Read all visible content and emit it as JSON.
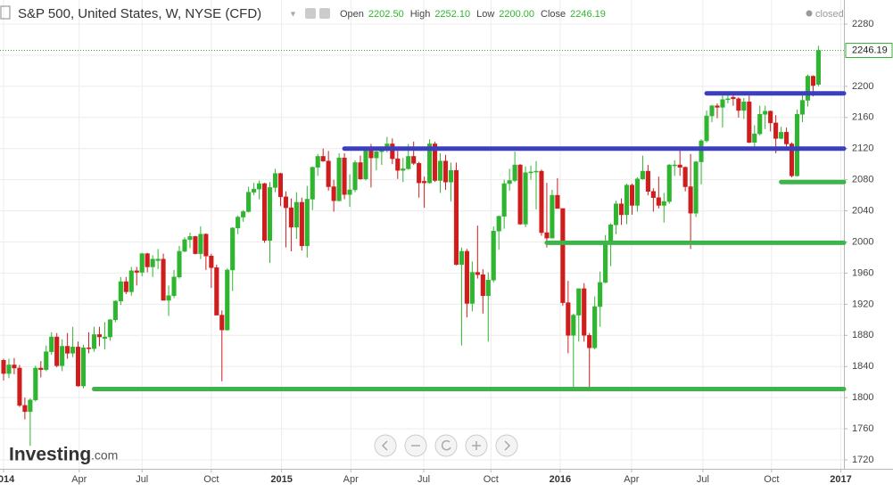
{
  "chart_data": {
    "type": "candlestick",
    "title": "S&P 500, United States, W, NYSE (CFD)",
    "header_values": [
      {
        "label": "Open",
        "value": "2202.50"
      },
      {
        "label": "High",
        "value": "2252.10"
      },
      {
        "label": "Low",
        "value": "2200.00"
      },
      {
        "label": "Close",
        "value": "2246.19"
      }
    ],
    "status": "closed",
    "brand": "Investing",
    "brand_suffix": ".com",
    "up_color": "#2fb52f",
    "down_color": "#cf1d1d",
    "grid": true,
    "ylim": [
      1720,
      2280
    ],
    "yticks": [
      1720,
      1760,
      1800,
      1840,
      1880,
      1920,
      1960,
      2000,
      2040,
      2080,
      2120,
      2160,
      2200,
      2240,
      2280
    ],
    "xticks": [
      {
        "value": 0,
        "label": "2014"
      },
      {
        "value": 14.2,
        "label": "Apr"
      },
      {
        "value": 26,
        "label": "Jul"
      },
      {
        "value": 39,
        "label": "Oct"
      },
      {
        "value": 52.2,
        "label": "2015"
      },
      {
        "value": 65.2,
        "label": "Apr"
      },
      {
        "value": 78.9,
        "label": "Jul"
      },
      {
        "value": 91.5,
        "label": "Oct"
      },
      {
        "value": 104.5,
        "label": "2016"
      },
      {
        "value": 117.9,
        "label": "Apr"
      },
      {
        "value": 131.3,
        "label": "Jul"
      },
      {
        "value": 144.2,
        "label": "Oct"
      },
      {
        "value": 157.2,
        "label": "2017"
      }
    ],
    "last_price": {
      "value": 2246.19,
      "label": "2246.19",
      "color": "#2fb52f"
    },
    "levels": [
      {
        "value": 2191,
        "from": 132,
        "color": "#3b3fbf"
      },
      {
        "value": 2120,
        "from": 64,
        "color": "#3b3fbf"
      },
      {
        "value": 2077,
        "from": 146,
        "color": "#3cb44a"
      },
      {
        "value": 1999,
        "from": 102,
        "color": "#3cb44a"
      },
      {
        "value": 1811,
        "from": 17,
        "color": "#3cb44a"
      }
    ],
    "candles": [
      [
        1848,
        1850,
        1822,
        1831
      ],
      [
        1831,
        1850,
        1825,
        1842
      ],
      [
        1842,
        1851,
        1830,
        1838
      ],
      [
        1838,
        1842,
        1788,
        1790
      ],
      [
        1790,
        1800,
        1772,
        1782
      ],
      [
        1782,
        1799,
        1738,
        1797
      ],
      [
        1797,
        1841,
        1795,
        1838
      ],
      [
        1838,
        1847,
        1826,
        1836
      ],
      [
        1836,
        1867,
        1834,
        1859
      ],
      [
        1859,
        1884,
        1855,
        1878
      ],
      [
        1878,
        1883,
        1839,
        1841
      ],
      [
        1841,
        1875,
        1834,
        1866
      ],
      [
        1866,
        1883,
        1850,
        1857
      ],
      [
        1857,
        1891,
        1852,
        1865
      ],
      [
        1865,
        1872,
        1814,
        1815
      ],
      [
        1815,
        1868,
        1812,
        1864
      ],
      [
        1864,
        1884,
        1857,
        1863
      ],
      [
        1863,
        1891,
        1859,
        1881
      ],
      [
        1881,
        1891,
        1866,
        1878
      ],
      [
        1876,
        1897,
        1862,
        1878
      ],
      [
        1878,
        1901,
        1873,
        1900
      ],
      [
        1900,
        1925,
        1897,
        1924
      ],
      [
        1924,
        1955,
        1919,
        1949
      ],
      [
        1949,
        1955,
        1933,
        1936
      ],
      [
        1936,
        1968,
        1931,
        1963
      ],
      [
        1963,
        1968,
        1944,
        1961
      ],
      [
        1961,
        1986,
        1956,
        1985
      ],
      [
        1985,
        1986,
        1961,
        1968
      ],
      [
        1968,
        1983,
        1955,
        1978
      ],
      [
        1976,
        1991,
        1965,
        1978
      ],
      [
        1978,
        1985,
        1925,
        1925
      ],
      [
        1925,
        1944,
        1905,
        1931
      ],
      [
        1931,
        1964,
        1928,
        1955
      ],
      [
        1955,
        1995,
        1953,
        1988
      ],
      [
        1988,
        2006,
        1987,
        2003
      ],
      [
        2003,
        2012,
        1992,
        2007
      ],
      [
        2007,
        2008,
        1984,
        1985
      ],
      [
        1985,
        2020,
        1978,
        2010
      ],
      [
        2010,
        2011,
        1964,
        1982
      ],
      [
        1982,
        1985,
        1941,
        1967
      ],
      [
        1967,
        1971,
        1906,
        1906
      ],
      [
        1906,
        1912,
        1821,
        1887
      ],
      [
        1887,
        1966,
        1886,
        1964
      ],
      [
        1964,
        2019,
        1937,
        2018
      ],
      [
        2018,
        2034,
        2010,
        2032
      ],
      [
        2032,
        2041,
        2026,
        2039
      ],
      [
        2039,
        2071,
        2038,
        2064
      ],
      [
        2064,
        2076,
        2060,
        2068
      ],
      [
        2068,
        2079,
        2055,
        2075
      ],
      [
        2075,
        2076,
        1999,
        2002
      ],
      [
        2002,
        2077,
        1973,
        2070
      ],
      [
        2070,
        2094,
        2064,
        2088
      ],
      [
        2088,
        2089,
        2046,
        2058
      ],
      [
        2058,
        2065,
        1993,
        2044
      ],
      [
        2044,
        2056,
        1988,
        2019
      ],
      [
        2019,
        2064,
        2004,
        2051
      ],
      [
        2051,
        2057,
        1989,
        1995
      ],
      [
        1995,
        2072,
        1980,
        2055
      ],
      [
        2055,
        2097,
        2041,
        2096
      ],
      [
        2096,
        2113,
        2085,
        2110
      ],
      [
        2110,
        2120,
        2103,
        2104
      ],
      [
        2104,
        2117,
        2066,
        2071
      ],
      [
        2071,
        2080,
        2039,
        2053
      ],
      [
        2053,
        2114,
        2052,
        2108
      ],
      [
        2108,
        2114,
        2055,
        2061
      ],
      [
        2061,
        2087,
        2045,
        2067
      ],
      [
        2067,
        2105,
        2064,
        2102
      ],
      [
        2102,
        2111,
        2080,
        2081
      ],
      [
        2081,
        2120,
        2079,
        2117
      ],
      [
        2117,
        2126,
        2070,
        2108
      ],
      [
        2108,
        2117,
        2092,
        2116
      ],
      [
        2116,
        2123,
        2099,
        2122
      ],
      [
        2122,
        2135,
        2115,
        2126
      ],
      [
        2126,
        2133,
        2100,
        2107
      ],
      [
        2107,
        2117,
        2081,
        2092
      ],
      [
        2092,
        2108,
        2077,
        2094
      ],
      [
        2094,
        2126,
        2093,
        2110
      ],
      [
        2110,
        2129,
        2099,
        2101
      ],
      [
        2101,
        2103,
        2057,
        2076
      ],
      [
        2078,
        2084,
        2044,
        2076
      ],
      [
        2076,
        2132,
        2075,
        2126
      ],
      [
        2126,
        2129,
        2077,
        2079
      ],
      [
        2079,
        2114,
        2063,
        2104
      ],
      [
        2104,
        2112,
        2067,
        2077
      ],
      [
        2077,
        2102,
        2052,
        2092
      ],
      [
        2092,
        2102,
        1970,
        1971
      ],
      [
        1971,
        1993,
        1867,
        1988
      ],
      [
        1988,
        1991,
        1903,
        1921
      ],
      [
        1921,
        1975,
        1911,
        1961
      ],
      [
        1961,
        2021,
        1953,
        1958
      ],
      [
        1958,
        1965,
        1908,
        1931
      ],
      [
        1931,
        1961,
        1872,
        1951
      ],
      [
        1951,
        2020,
        1948,
        2014
      ],
      [
        2014,
        2034,
        1990,
        2033
      ],
      [
        2033,
        2080,
        2017,
        2075
      ],
      [
        2075,
        2094,
        2066,
        2079
      ],
      [
        2079,
        2116,
        2077,
        2099
      ],
      [
        2099,
        2100,
        2022,
        2023
      ],
      [
        2023,
        2097,
        2019,
        2089
      ],
      [
        2089,
        2098,
        2080,
        2090
      ],
      [
        2090,
        2104,
        2042,
        2091
      ],
      [
        2091,
        2093,
        2008,
        2012
      ],
      [
        2012,
        2076,
        1993,
        2005
      ],
      [
        2005,
        2067,
        2005,
        2060
      ],
      [
        2060,
        2082,
        2043,
        2043
      ],
      [
        2043,
        2043,
        1918,
        1922
      ],
      [
        1922,
        1950,
        1857,
        1880
      ],
      [
        1880,
        1908,
        1812,
        1906
      ],
      [
        1906,
        1940,
        1872,
        1940
      ],
      [
        1940,
        1947,
        1872,
        1880
      ],
      [
        1880,
        1883,
        1810,
        1864
      ],
      [
        1864,
        1930,
        1862,
        1917
      ],
      [
        1917,
        1962,
        1891,
        1948
      ],
      [
        1948,
        2009,
        1947,
        1999
      ],
      [
        1999,
        2024,
        1969,
        2022
      ],
      [
        2022,
        2053,
        2010,
        2049
      ],
      [
        2049,
        2056,
        2022,
        2035
      ],
      [
        2035,
        2075,
        2023,
        2073
      ],
      [
        2073,
        2075,
        2035,
        2047
      ],
      [
        2047,
        2083,
        2039,
        2081
      ],
      [
        2081,
        2111,
        2080,
        2091
      ],
      [
        2091,
        2099,
        2060,
        2065
      ],
      [
        2065,
        2069,
        2039,
        2057
      ],
      [
        2057,
        2084,
        2043,
        2047
      ],
      [
        2047,
        2063,
        2025,
        2052
      ],
      [
        2052,
        2100,
        2049,
        2099
      ],
      [
        2098,
        2105,
        2085,
        2099
      ],
      [
        2099,
        2120,
        2085,
        2096
      ],
      [
        2096,
        2097,
        2065,
        2071
      ],
      [
        2071,
        2113,
        1991,
        2037
      ],
      [
        2037,
        2104,
        2032,
        2103
      ],
      [
        2103,
        2132,
        2074,
        2130
      ],
      [
        2130,
        2169,
        2128,
        2162
      ],
      [
        2162,
        2176,
        2154,
        2175
      ],
      [
        2175,
        2178,
        2159,
        2173
      ],
      [
        2173,
        2188,
        2147,
        2183
      ],
      [
        2183,
        2193,
        2178,
        2184
      ],
      [
        2186,
        2188,
        2175,
        2184
      ],
      [
        2184,
        2186,
        2160,
        2169
      ],
      [
        2169,
        2185,
        2158,
        2180
      ],
      [
        2180,
        2188,
        2127,
        2128
      ],
      [
        2128,
        2150,
        2119,
        2139
      ],
      [
        2139,
        2175,
        2137,
        2164
      ],
      [
        2164,
        2175,
        2145,
        2168
      ],
      [
        2168,
        2169,
        2142,
        2153
      ],
      [
        2153,
        2163,
        2114,
        2133
      ],
      [
        2133,
        2148,
        2132,
        2141
      ],
      [
        2141,
        2147,
        2122,
        2126
      ],
      [
        2126,
        2128,
        2083,
        2085
      ],
      [
        2085,
        2170,
        2084,
        2164
      ],
      [
        2164,
        2189,
        2154,
        2182
      ],
      [
        2182,
        2215,
        2174,
        2213
      ],
      [
        2213,
        2214,
        2187,
        2201
      ],
      [
        2202.5,
        2252.1,
        2200,
        2246.19
      ]
    ]
  }
}
